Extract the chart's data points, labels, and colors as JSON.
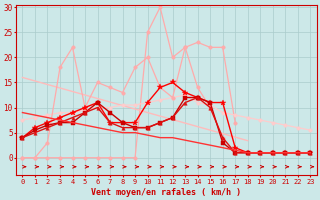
{
  "xlabel": "Vent moyen/en rafales ( km/h )",
  "background_color": "#cce8e8",
  "grid_color": "#aacccc",
  "x_max": 23,
  "y_max": 30,
  "lines": [
    {
      "x": [
        0,
        1,
        2,
        3,
        4,
        5,
        6,
        7,
        8,
        9,
        10,
        11,
        12,
        13,
        14,
        15,
        16,
        17,
        18,
        19,
        20,
        21,
        22,
        23
      ],
      "y": [
        0,
        0,
        0,
        0,
        0,
        0,
        0,
        0,
        0,
        0,
        25,
        30,
        20,
        22,
        23,
        22,
        22,
        7,
        null,
        null,
        null,
        null,
        null,
        null
      ],
      "color": "#ffaaaa",
      "marker": "o",
      "markersize": 2.5,
      "linewidth": 0.9
    },
    {
      "x": [
        0,
        1,
        2,
        3,
        4,
        5,
        6,
        7,
        8,
        9,
        10,
        11,
        12,
        13,
        14,
        15,
        16,
        17,
        18,
        19,
        20,
        21,
        22,
        23
      ],
      "y": [
        16,
        15.3,
        14.6,
        13.9,
        13.2,
        12.5,
        11.8,
        11.1,
        10.4,
        9.7,
        9.0,
        8.3,
        7.6,
        6.9,
        6.2,
        5.5,
        4.8,
        4.1,
        3.4,
        null,
        null,
        null,
        null,
        null
      ],
      "color": "#ffbbbb",
      "marker": "",
      "markersize": 0,
      "linewidth": 1.0
    },
    {
      "x": [
        0,
        1,
        2,
        3,
        4,
        5,
        6,
        7,
        8,
        9,
        10,
        11,
        12,
        13,
        14,
        15,
        16,
        17,
        18,
        19,
        20,
        21,
        22,
        23
      ],
      "y": [
        7.5,
        8,
        8.5,
        9,
        9,
        9.5,
        10,
        10,
        10.5,
        10.5,
        11,
        11.5,
        12,
        12.5,
        11,
        10.5,
        9,
        8.5,
        8,
        7.5,
        7,
        6.5,
        6,
        5.5
      ],
      "color": "#ffcccc",
      "marker": "o",
      "markersize": 2.5,
      "linewidth": 0.9
    },
    {
      "x": [
        0,
        1,
        2,
        3,
        4,
        5,
        6,
        7,
        8,
        9,
        10,
        11,
        12,
        13,
        14,
        15,
        16,
        17,
        18,
        19,
        20,
        21,
        22,
        23
      ],
      "y": [
        0,
        0,
        3,
        18,
        22,
        10,
        15,
        14,
        13,
        18,
        20,
        14,
        12,
        22,
        14,
        10,
        4,
        null,
        null,
        null,
        null,
        null,
        null,
        null
      ],
      "color": "#ffaaaa",
      "marker": "o",
      "markersize": 2.5,
      "linewidth": 0.9
    },
    {
      "x": [
        0,
        1,
        2,
        3,
        4,
        5,
        6,
        7,
        8,
        9,
        10,
        11,
        12,
        13,
        14,
        15,
        16,
        17,
        18,
        19,
        20,
        21,
        22,
        23
      ],
      "y": [
        4,
        6,
        7,
        8,
        9,
        10,
        11,
        7,
        7,
        7,
        11,
        14,
        15,
        13,
        12,
        11,
        11,
        2,
        1,
        1,
        1,
        1,
        1,
        1
      ],
      "color": "#ff0000",
      "marker": "*",
      "markersize": 4,
      "linewidth": 1.0
    },
    {
      "x": [
        0,
        1,
        2,
        3,
        4,
        5,
        6,
        7,
        8,
        9,
        10,
        11,
        12,
        13,
        14,
        15,
        16,
        17,
        18,
        19,
        20,
        21,
        22,
        23
      ],
      "y": [
        4,
        5.5,
        6.5,
        7,
        7,
        9,
        11,
        9,
        7,
        6,
        6,
        7,
        8,
        12,
        12,
        11,
        3,
        1,
        1,
        1,
        1,
        1,
        1,
        1
      ],
      "color": "#cc0000",
      "marker": "s",
      "markersize": 2.5,
      "linewidth": 1.0
    },
    {
      "x": [
        0,
        1,
        2,
        3,
        4,
        5,
        6,
        7,
        8,
        9,
        10,
        11,
        12,
        13,
        14,
        15,
        16,
        17,
        18,
        19,
        20,
        21,
        22,
        23
      ],
      "y": [
        4,
        5,
        6,
        7,
        8,
        9,
        10,
        7,
        6,
        6,
        6,
        7,
        8,
        11,
        12,
        10,
        4,
        1,
        1,
        1,
        1,
        1,
        1,
        1
      ],
      "color": "#dd1111",
      "marker": "^",
      "markersize": 2.5,
      "linewidth": 1.0
    },
    {
      "x": [
        0,
        1,
        2,
        3,
        4,
        5,
        6,
        7,
        8,
        9,
        10,
        11,
        12,
        13,
        14,
        15,
        16,
        17,
        18,
        19,
        20,
        21,
        22,
        23
      ],
      "y": [
        9,
        8.5,
        8,
        7.5,
        7,
        6.5,
        6,
        5.5,
        5,
        5,
        4.5,
        4,
        4,
        3.5,
        3,
        2.5,
        2,
        1.5,
        1,
        1,
        1,
        1,
        1,
        1
      ],
      "color": "#ff3333",
      "marker": "",
      "markersize": 0,
      "linewidth": 1.0
    }
  ],
  "yticks": [
    0,
    5,
    10,
    15,
    20,
    25,
    30
  ],
  "xticks": [
    0,
    1,
    2,
    3,
    4,
    5,
    6,
    7,
    8,
    9,
    10,
    11,
    12,
    13,
    14,
    15,
    16,
    17,
    18,
    19,
    20,
    21,
    22,
    23
  ]
}
